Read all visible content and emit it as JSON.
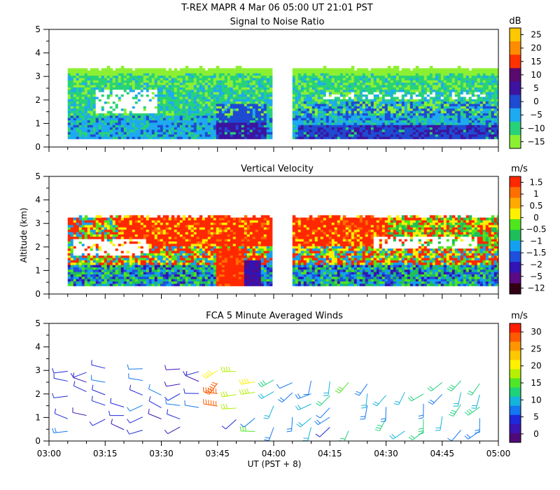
{
  "header": {
    "line1": "T-REX   MAPR   4 Mar 06   05:00 UT   21:01   PST"
  },
  "x_axis": {
    "label": "UT  (PST + 8)",
    "ticks": [
      "03:00",
      "03:15",
      "03:30",
      "03:45",
      "04:00",
      "04:15",
      "04:30",
      "04:45",
      "05:00"
    ]
  },
  "y_axis_label": "Altitude (km)",
  "chart_data": [
    {
      "type": "heatmap",
      "title": "Signal to Noise Ratio",
      "colorbar_unit": "dB",
      "colorbar_labels": [
        "25",
        "20",
        "15",
        "10",
        "5",
        "0",
        "−5",
        "−10",
        "−15"
      ],
      "colorbar_colors": [
        "#ffc800",
        "#ff8c00",
        "#ff3200",
        "#5a0a6e",
        "#3c14a0",
        "#1e4bd2",
        "#1eaaf0",
        "#28d278",
        "#8cf032"
      ],
      "x_range": [
        "03:00",
        "05:00"
      ],
      "y_range_km": [
        0,
        5
      ],
      "y_ticks": [
        "0",
        "1",
        "2",
        "3",
        "4",
        "5"
      ],
      "data_segments_ut": [
        [
          "03:05",
          "03:59"
        ],
        [
          "04:05",
          "05:00"
        ]
      ],
      "data_top_km": 3.3,
      "data_bottom_km": 0.35
    },
    {
      "type": "heatmap",
      "title": "Vertical Velocity",
      "colorbar_unit": "m/s",
      "colorbar_labels": [
        "1.5",
        "1",
        "0.5",
        "0",
        "−0.5",
        "−1",
        "−1.5",
        "−2",
        "−5",
        "−12"
      ],
      "colorbar_colors": [
        "#ff2800",
        "#ff6e00",
        "#ffaa00",
        "#fff000",
        "#50e61e",
        "#1ebe5a",
        "#14a0f0",
        "#1e50dc",
        "#3214b4",
        "#5a0a82",
        "#320014"
      ],
      "x_range": [
        "03:00",
        "05:00"
      ],
      "y_range_km": [
        0,
        5
      ],
      "y_ticks": [
        "0",
        "1",
        "2",
        "3",
        "4",
        "5"
      ],
      "data_segments_ut": [
        [
          "03:05",
          "03:59"
        ],
        [
          "04:05",
          "05:00"
        ]
      ],
      "data_top_km": 3.25,
      "data_bottom_km": 0.35
    },
    {
      "type": "scatter",
      "title": "FCA 5 Minute Averaged Winds",
      "colorbar_unit": "m/s",
      "colorbar_labels": [
        "30",
        "25",
        "20",
        "15",
        "10",
        "5",
        "0"
      ],
      "colorbar_colors": [
        "#ff1e00",
        "#ff5a00",
        "#ff9600",
        "#ffc800",
        "#fff000",
        "#b4f000",
        "#50e628",
        "#1ed278",
        "#14b4dc",
        "#1478f0",
        "#1e28dc",
        "#3c14b4",
        "#500a78"
      ],
      "x_range": [
        "03:00",
        "05:00"
      ],
      "y_range_km": [
        0,
        5
      ],
      "y_ticks": [
        "0",
        "1",
        "2",
        "3",
        "4",
        "5"
      ],
      "barb_columns_ut": [
        "03:05",
        "03:10",
        "03:15",
        "03:20",
        "03:25",
        "03:30",
        "03:35",
        "03:40",
        "03:45",
        "03:50",
        "03:55",
        "04:00",
        "04:05",
        "04:10",
        "04:15",
        "04:20",
        "04:25",
        "04:30",
        "04:35",
        "04:40",
        "04:45",
        "04:50",
        "04:55"
      ]
    }
  ]
}
